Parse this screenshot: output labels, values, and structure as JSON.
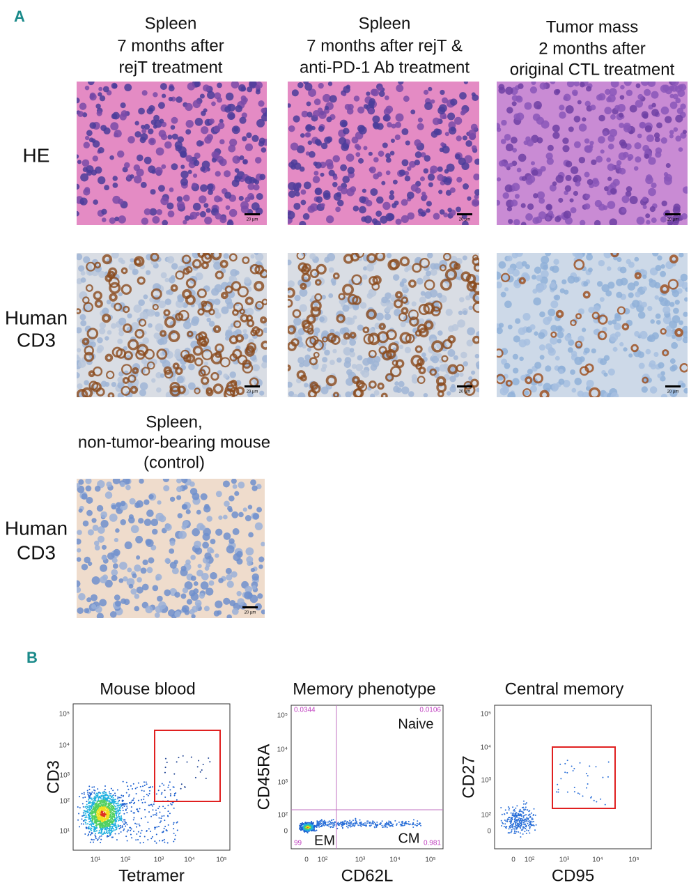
{
  "panel_a": {
    "label": "A",
    "column_titles": [
      [
        "Spleen",
        "7 months after",
        "rejT treatment"
      ],
      [
        "Spleen",
        "7 months after rejT &",
        "anti-PD-1 Ab treatment"
      ],
      [
        "Tumor mass",
        "2 months after",
        "original CTL treatment"
      ]
    ],
    "row_labels": [
      [
        "HE"
      ],
      [
        "Human",
        "CD3"
      ]
    ],
    "scale_bars": [
      [
        "20 µm",
        "20 µm",
        "20 µm"
      ],
      [
        "20 µm",
        "20 µm",
        "20 µm"
      ]
    ],
    "control": {
      "title": [
        "Spleen,",
        "non-tumor-bearing mouse",
        "(control)"
      ],
      "row_label": [
        "Human",
        "CD3"
      ],
      "scale_bar": "20 µm"
    }
  },
  "panel_b": {
    "label": "B",
    "plots": [
      {
        "title": "Mouse blood",
        "x_label": "Tetramer",
        "y_label": "CD3",
        "xticks": [
          "10¹",
          "10²",
          "10³",
          "10⁴",
          "10⁵"
        ],
        "yticks": [
          "10⁵",
          "10⁴",
          "10³",
          "10²",
          "10¹"
        ]
      },
      {
        "title": "Memory phenotype",
        "x_label": "CD62L",
        "y_label": "CD45RA",
        "xticks": [
          "0",
          "10²",
          "10³",
          "10⁴",
          "10⁵"
        ],
        "yticks": [
          "10⁵",
          "10⁴",
          "10³",
          "10²",
          "0"
        ],
        "quadrant_values": [
          "0.0344",
          "0.0106",
          "99",
          "0.981"
        ],
        "quadrant_names": [
          "Naive",
          "EM",
          "CM"
        ]
      },
      {
        "title": "Central memory",
        "x_label": "CD95",
        "y_label": "CD27",
        "xticks": [
          "0",
          "10²",
          "10³",
          "10⁴",
          "10⁵"
        ],
        "yticks": [
          "10⁵",
          "10⁴",
          "10³",
          "10²",
          "0"
        ]
      }
    ]
  }
}
